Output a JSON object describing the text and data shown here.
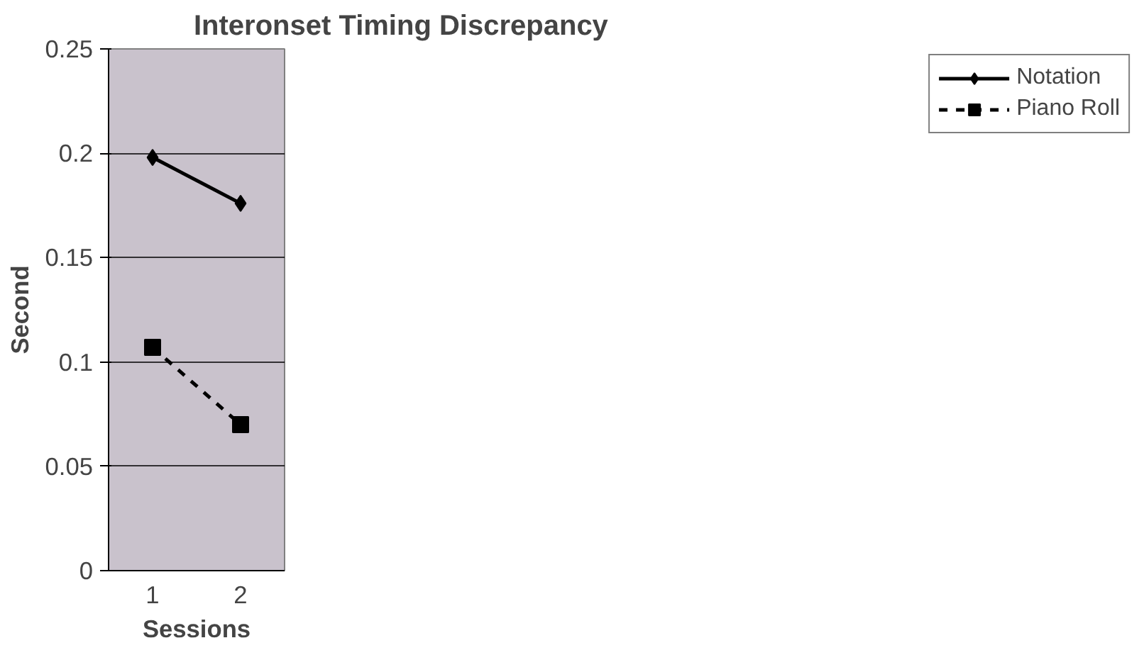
{
  "chart_data": {
    "type": "line",
    "title": "Interonset Timing Discrepancy",
    "xlabel": "Sessions",
    "ylabel": "Second",
    "categories": [
      "1",
      "2"
    ],
    "series": [
      {
        "name": "Notation",
        "color": "#000000",
        "values": [
          0.198,
          0.176
        ],
        "marker": "diamond",
        "line_style": "solid"
      },
      {
        "name": "Piano Roll",
        "color": "#000000",
        "values": [
          0.107,
          0.07
        ],
        "marker": "square",
        "line_style": "dashed"
      }
    ],
    "ylim": [
      0,
      0.25
    ],
    "yticks": [
      0,
      0.05,
      0.1,
      0.15,
      0.2,
      0.25
    ],
    "grid": "y",
    "legend": "top right"
  }
}
